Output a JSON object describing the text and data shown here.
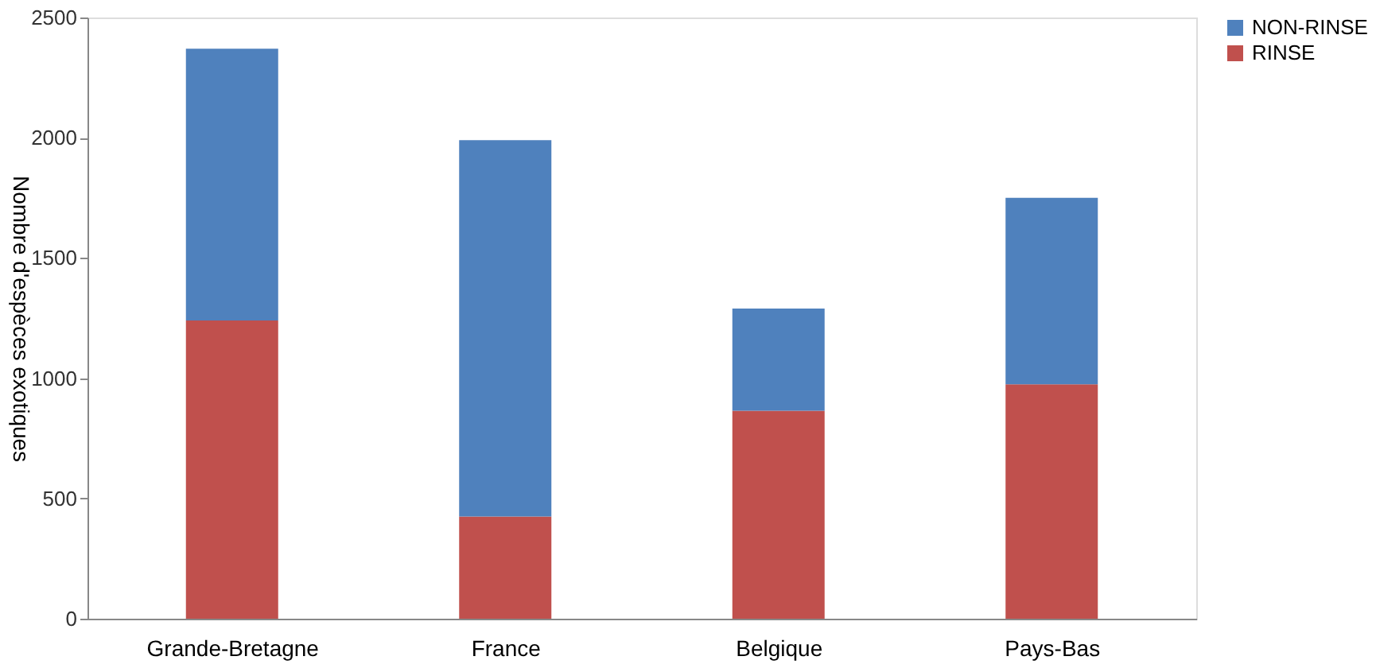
{
  "chart_data": {
    "type": "bar",
    "stacked": true,
    "ylabel": "Nombre d'espèces exotiques",
    "categories": [
      "Grande-Bretagne",
      "France",
      "Belgique",
      "Pays-Bas"
    ],
    "series": [
      {
        "name": "RINSE",
        "color": "#c0504d",
        "values": [
          1240,
          425,
          865,
          975
        ]
      },
      {
        "name": "NON-RINSE",
        "color": "#4f81bd",
        "values": [
          1130,
          1565,
          425,
          775
        ]
      }
    ],
    "ylim": [
      0,
      2500
    ],
    "yticks": [
      0,
      500,
      1000,
      1500,
      2000,
      2500
    ],
    "grid": false,
    "legend": "right"
  }
}
